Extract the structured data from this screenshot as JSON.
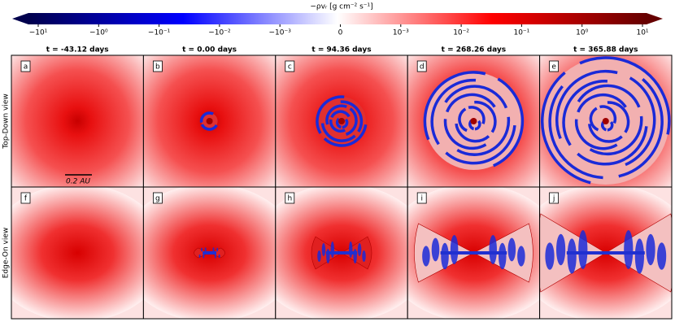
{
  "colorbar": {
    "label": "−ρvᵣ [g cm⁻² s⁻¹]",
    "ticks": [
      "−10¹",
      "−10⁰",
      "−10⁻¹",
      "−10⁻²",
      "−10⁻³",
      "0",
      "10⁻³",
      "10⁻²",
      "10⁻¹",
      "10⁰",
      "10¹"
    ]
  },
  "columns": [
    "t = -43.12 days",
    "t = 0.00 days",
    "t = 94.36 days",
    "t = 268.26 days",
    "t = 365.88 days"
  ],
  "rows": [
    "Top-Down view",
    "Edge-On view"
  ],
  "panels": [
    [
      "a",
      "b",
      "c",
      "d",
      "e"
    ],
    [
      "f",
      "g",
      "h",
      "i",
      "j"
    ]
  ],
  "scale_bar": "0.2 AU"
}
